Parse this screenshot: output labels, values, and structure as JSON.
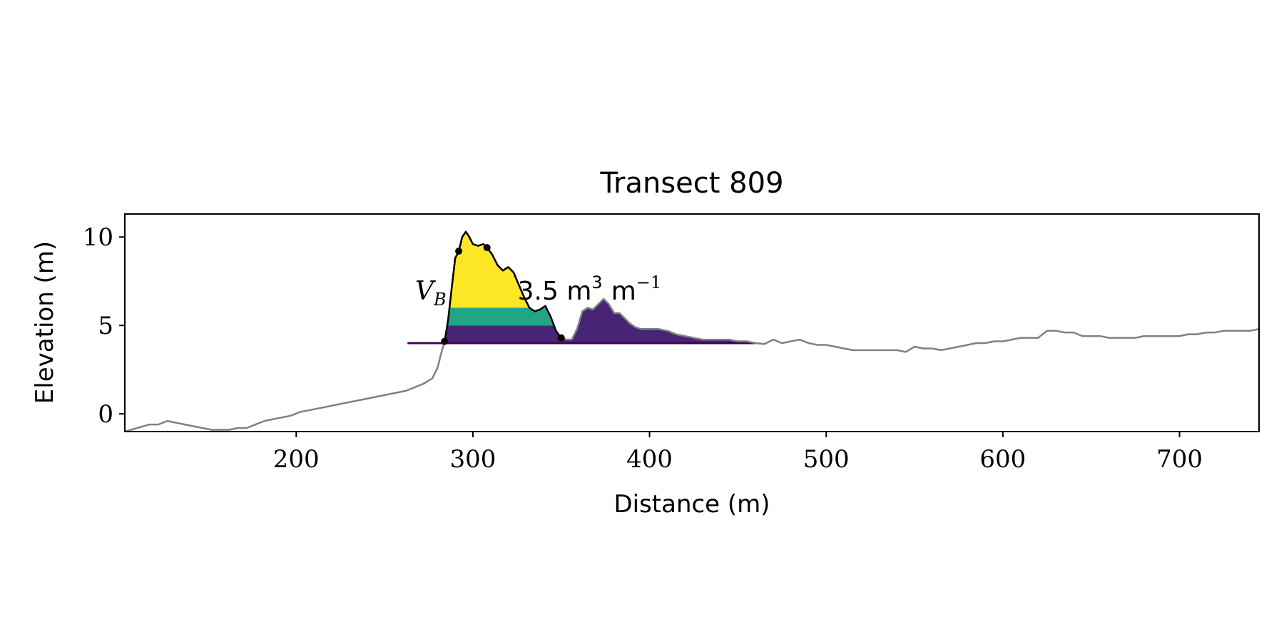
{
  "chart_data": {
    "type": "area",
    "title": "Transect 809",
    "xlabel": "Distance (m)",
    "ylabel": "Elevation (m)",
    "xlim": [
      103,
      745
    ],
    "ylim": [
      -1,
      11.3
    ],
    "xticks": [
      200,
      300,
      400,
      500,
      600,
      700
    ],
    "yticks": [
      0,
      5,
      10
    ],
    "grid": false,
    "legend": "none",
    "annotation": {
      "symbol": "V",
      "subscript": "B",
      "text": "3.5 m",
      "sup1": "3",
      "unit2": "m",
      "sup2": "−1",
      "x": 265,
      "y": 6.5
    },
    "profile": {
      "name": "profile",
      "color": "#808080",
      "x": [
        103,
        110,
        117,
        122,
        127,
        132,
        137,
        142,
        147,
        152,
        157,
        162,
        167,
        172,
        177,
        182,
        187,
        192,
        197,
        202,
        207,
        212,
        217,
        222,
        227,
        232,
        237,
        242,
        247,
        252,
        257,
        262,
        267,
        272,
        277,
        280,
        282,
        284,
        286,
        288,
        290,
        292,
        294,
        296,
        298,
        300,
        303,
        306,
        308,
        311,
        314,
        317,
        320,
        323,
        326,
        329,
        332,
        335,
        338,
        341,
        344,
        347,
        350,
        353,
        356,
        359,
        362,
        365,
        368,
        371,
        374,
        377,
        380,
        383,
        386,
        389,
        392,
        395,
        398,
        401,
        405,
        410,
        415,
        420,
        425,
        430,
        435,
        440,
        445,
        450,
        455,
        460,
        465,
        470,
        475,
        480,
        485,
        490,
        495,
        500,
        505,
        510,
        515,
        520,
        525,
        530,
        535,
        540,
        545,
        550,
        555,
        560,
        565,
        570,
        575,
        580,
        585,
        590,
        595,
        600,
        605,
        610,
        615,
        620,
        625,
        630,
        635,
        640,
        645,
        650,
        655,
        660,
        665,
        670,
        675,
        680,
        685,
        690,
        695,
        700,
        705,
        710,
        715,
        720,
        725,
        730,
        735,
        740,
        745
      ],
      "y": [
        -1.0,
        -0.8,
        -0.6,
        -0.6,
        -0.4,
        -0.5,
        -0.6,
        -0.7,
        -0.8,
        -0.9,
        -0.9,
        -0.9,
        -0.8,
        -0.8,
        -0.6,
        -0.4,
        -0.3,
        -0.2,
        -0.1,
        0.1,
        0.2,
        0.3,
        0.4,
        0.5,
        0.6,
        0.7,
        0.8,
        0.9,
        1.0,
        1.1,
        1.2,
        1.3,
        1.5,
        1.7,
        2.0,
        2.6,
        3.4,
        4.1,
        5.3,
        7.1,
        8.8,
        9.2,
        10.0,
        10.3,
        10.0,
        9.6,
        9.5,
        9.6,
        9.4,
        9.0,
        8.4,
        8.1,
        8.3,
        8.0,
        7.3,
        6.6,
        6.0,
        5.8,
        5.9,
        6.1,
        5.5,
        4.7,
        4.3,
        4.2,
        4.2,
        4.8,
        5.8,
        6.0,
        5.9,
        6.2,
        6.5,
        6.2,
        5.7,
        5.7,
        5.4,
        5.1,
        4.9,
        4.8,
        4.8,
        4.8,
        4.8,
        4.7,
        4.5,
        4.4,
        4.3,
        4.2,
        4.2,
        4.2,
        4.2,
        4.1,
        4.1,
        4.0,
        3.95,
        4.2,
        4.0,
        4.1,
        4.2,
        4.0,
        3.9,
        3.9,
        3.8,
        3.7,
        3.6,
        3.6,
        3.6,
        3.6,
        3.6,
        3.6,
        3.5,
        3.8,
        3.7,
        3.7,
        3.6,
        3.7,
        3.8,
        3.9,
        4.0,
        4.0,
        4.1,
        4.1,
        4.2,
        4.3,
        4.3,
        4.3,
        4.7,
        4.7,
        4.6,
        4.6,
        4.4,
        4.4,
        4.4,
        4.3,
        4.3,
        4.3,
        4.3,
        4.4,
        4.4,
        4.4,
        4.4,
        4.4,
        4.5,
        4.5,
        4.6,
        4.6,
        4.7,
        4.7,
        4.7,
        4.7,
        4.8
      ]
    },
    "dune": {
      "name": "dune",
      "color": "#000000",
      "x": [
        284,
        286,
        288,
        290,
        292,
        294,
        296,
        298,
        300,
        303,
        306,
        308,
        311,
        314,
        317,
        320,
        323,
        326,
        329,
        332,
        335,
        338,
        341,
        344,
        347,
        350
      ],
      "y": [
        4.1,
        5.3,
        7.1,
        8.8,
        9.2,
        10.0,
        10.3,
        10.0,
        9.6,
        9.5,
        9.6,
        9.4,
        9.0,
        8.4,
        8.1,
        8.3,
        8.0,
        7.3,
        6.6,
        6.0,
        5.8,
        5.9,
        6.1,
        5.5,
        4.7,
        4.3
      ]
    },
    "markers": {
      "color": "#000000",
      "x": [
        284,
        292,
        308,
        350
      ],
      "y": [
        4.1,
        9.2,
        9.4,
        4.3
      ]
    },
    "bands": [
      {
        "color": "#FDE725",
        "lower": 6.0,
        "upper": null,
        "x_start": 265,
        "x_end": 350
      },
      {
        "color": "#21A585",
        "lower": 5.0,
        "upper": 6.0,
        "x_start": 263,
        "x_end": 350
      },
      {
        "color": "#482475",
        "lower": 4.0,
        "upper": 5.0,
        "x_start": 263,
        "x_end": 350
      },
      {
        "color": "#482475",
        "lower": 4.0,
        "upper": null,
        "x_start": 350,
        "x_end": 460
      }
    ],
    "base_line": {
      "color": "#440154",
      "y": 4.0,
      "x_start": 263,
      "x_end": 460
    }
  }
}
